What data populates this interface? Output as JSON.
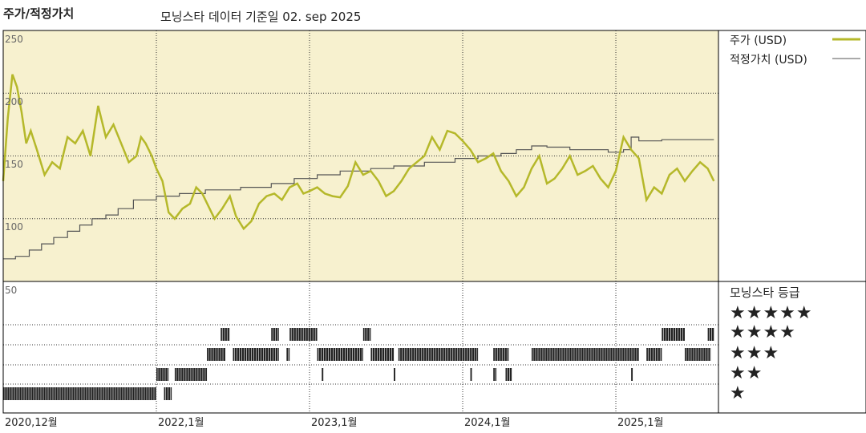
{
  "header": {
    "title": "주가/적정가치",
    "subtitle": "모닝스타 데이터 기준일 02. sep 2025"
  },
  "legend": {
    "price": "주가 (USD)",
    "fair": "적정가치 (USD)"
  },
  "rating": {
    "title": "모닝스타 등급",
    "rows": [
      "★★★★★",
      "★★★★",
      "★★★",
      "★★",
      "★"
    ]
  },
  "ticks": {
    "y250": "250",
    "y200": "200",
    "y150": "150",
    "y100": "100",
    "y50": "50"
  },
  "chart_data": {
    "type": "line",
    "ylim": [
      50,
      250
    ],
    "xlim": [
      2021.0,
      2025.67
    ],
    "x_tick_labels": [
      "2020,12월",
      "2022,1월",
      "2023,1월",
      "2024,1월",
      "2025,1월"
    ],
    "x_tick_positions": [
      2021.0,
      2022.0,
      2023.0,
      2024.0,
      2025.0
    ],
    "series": [
      {
        "name": "주가 (USD)",
        "color": "#b5b82a",
        "x": [
          2021.0,
          2021.03,
          2021.06,
          2021.09,
          2021.12,
          2021.15,
          2021.18,
          2021.22,
          2021.27,
          2021.32,
          2021.37,
          2021.42,
          2021.47,
          2021.52,
          2021.57,
          2021.62,
          2021.67,
          2021.72,
          2021.77,
          2021.82,
          2021.87,
          2021.9,
          2021.93,
          2021.97,
          2022.0,
          2022.04,
          2022.08,
          2022.12,
          2022.17,
          2022.22,
          2022.26,
          2022.3,
          2022.34,
          2022.38,
          2022.43,
          2022.48,
          2022.52,
          2022.57,
          2022.62,
          2022.67,
          2022.72,
          2022.77,
          2022.82,
          2022.87,
          2022.92,
          2022.96,
          2023.0,
          2023.05,
          2023.1,
          2023.15,
          2023.2,
          2023.25,
          2023.3,
          2023.35,
          2023.4,
          2023.45,
          2023.5,
          2023.55,
          2023.6,
          2023.65,
          2023.7,
          2023.75,
          2023.8,
          2023.85,
          2023.9,
          2023.95,
          2024.0,
          2024.05,
          2024.1,
          2024.15,
          2024.2,
          2024.25,
          2024.3,
          2024.35,
          2024.4,
          2024.45,
          2024.5,
          2024.55,
          2024.6,
          2024.65,
          2024.7,
          2024.75,
          2024.8,
          2024.85,
          2024.9,
          2024.95,
          2025.0,
          2025.05,
          2025.1,
          2025.15,
          2025.2,
          2025.25,
          2025.3,
          2025.35,
          2025.4,
          2025.45,
          2025.5,
          2025.55,
          2025.6,
          2025.64
        ],
        "y": [
          130,
          180,
          215,
          205,
          185,
          160,
          170,
          155,
          135,
          145,
          140,
          165,
          160,
          170,
          150,
          190,
          165,
          175,
          160,
          145,
          150,
          165,
          160,
          150,
          140,
          130,
          105,
          100,
          108,
          112,
          125,
          120,
          110,
          100,
          108,
          118,
          102,
          92,
          98,
          112,
          118,
          120,
          115,
          125,
          128,
          120,
          122,
          125,
          120,
          118,
          117,
          126,
          145,
          135,
          138,
          130,
          118,
          122,
          130,
          140,
          145,
          150,
          165,
          155,
          170,
          168,
          162,
          155,
          145,
          148,
          152,
          138,
          130,
          118,
          125,
          140,
          150,
          128,
          132,
          140,
          150,
          135,
          138,
          142,
          132,
          125,
          138,
          165,
          155,
          148,
          115,
          125,
          120,
          135,
          140,
          130,
          138,
          145,
          140,
          130
        ]
      },
      {
        "name": "적정가치 (USD)",
        "color": "#555555",
        "x": [
          2021.0,
          2021.08,
          2021.08,
          2021.17,
          2021.17,
          2021.25,
          2021.25,
          2021.33,
          2021.33,
          2021.42,
          2021.42,
          2021.5,
          2021.5,
          2021.58,
          2021.58,
          2021.67,
          2021.67,
          2021.75,
          2021.75,
          2021.85,
          2021.85,
          2022.0,
          2022.0,
          2022.15,
          2022.15,
          2022.32,
          2022.32,
          2022.55,
          2022.55,
          2022.75,
          2022.75,
          2022.9,
          2022.9,
          2023.05,
          2023.05,
          2023.2,
          2023.2,
          2023.4,
          2023.4,
          2023.55,
          2023.55,
          2023.75,
          2023.75,
          2023.95,
          2023.95,
          2024.1,
          2024.1,
          2024.25,
          2024.25,
          2024.35,
          2024.35,
          2024.45,
          2024.45,
          2024.55,
          2024.55,
          2024.7,
          2024.7,
          2024.95,
          2024.95,
          2025.05,
          2025.05,
          2025.1,
          2025.1,
          2025.15,
          2025.15,
          2025.3,
          2025.3,
          2025.64
        ],
        "y": [
          68,
          68,
          70,
          70,
          75,
          75,
          80,
          80,
          85,
          85,
          90,
          90,
          95,
          95,
          100,
          100,
          103,
          103,
          108,
          108,
          115,
          115,
          118,
          118,
          120,
          120,
          123,
          123,
          125,
          125,
          128,
          128,
          132,
          132,
          135,
          135,
          138,
          138,
          140,
          140,
          142,
          142,
          145,
          145,
          148,
          148,
          150,
          150,
          152,
          152,
          155,
          155,
          158,
          158,
          157,
          157,
          155,
          155,
          153,
          153,
          155,
          155,
          165,
          165,
          162,
          162,
          163,
          163
        ]
      }
    ],
    "rating_bands": [
      {
        "stars": 1,
        "segments": [
          [
            2021.0,
            2022.0
          ],
          [
            2022.05,
            2022.1
          ]
        ]
      },
      {
        "stars": 2,
        "segments": [
          [
            2022.0,
            2022.08
          ],
          [
            2022.12,
            2022.33
          ],
          [
            2023.08,
            2023.09
          ],
          [
            2023.55,
            2023.56
          ],
          [
            2024.05,
            2024.06
          ],
          [
            2024.2,
            2024.22
          ],
          [
            2024.28,
            2024.32
          ],
          [
            2025.1,
            2025.11
          ]
        ]
      },
      {
        "stars": 3,
        "segments": [
          [
            2022.33,
            2022.45
          ],
          [
            2022.5,
            2022.8
          ],
          [
            2022.85,
            2022.87
          ],
          [
            2023.05,
            2023.35
          ],
          [
            2023.4,
            2023.55
          ],
          [
            2023.58,
            2024.1
          ],
          [
            2024.2,
            2024.3
          ],
          [
            2024.45,
            2025.15
          ],
          [
            2025.2,
            2025.3
          ],
          [
            2025.45,
            2025.62
          ]
        ]
      },
      {
        "stars": 4,
        "segments": [
          [
            2022.42,
            2022.48
          ],
          [
            2022.75,
            2022.8
          ],
          [
            2022.87,
            2023.05
          ],
          [
            2023.35,
            2023.4
          ],
          [
            2025.3,
            2025.45
          ],
          [
            2025.6,
            2025.64
          ]
        ]
      }
    ]
  }
}
